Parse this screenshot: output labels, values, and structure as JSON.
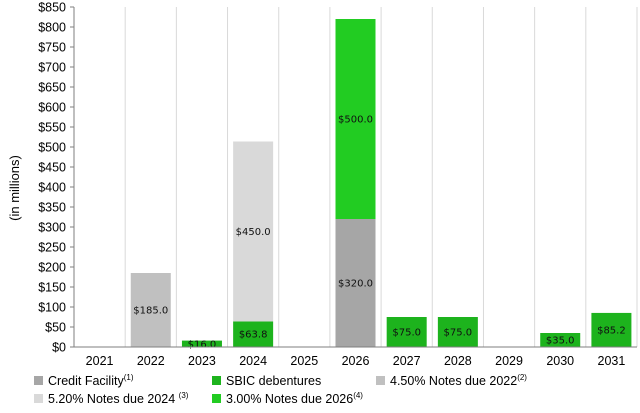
{
  "chart_data": {
    "type": "bar",
    "stacked": true,
    "categories": [
      "2021",
      "2022",
      "2023",
      "2024",
      "2025",
      "2026",
      "2027",
      "2028",
      "2029",
      "2030",
      "2031"
    ],
    "series": [
      {
        "name": "Credit Facility",
        "sup": "(1)",
        "color": "#a6a6a6",
        "values": [
          0,
          0,
          0,
          0,
          0,
          320,
          0,
          0,
          0,
          0,
          0
        ]
      },
      {
        "name": "SBIC debentures",
        "sup": "",
        "color": "#1db31d",
        "values": [
          0,
          0,
          16,
          63.8,
          0,
          0,
          75,
          75,
          0,
          35,
          85.2
        ]
      },
      {
        "name": "4.50% Notes due 2022",
        "sup": "(2)",
        "color": "#c0c0c0",
        "values": [
          0,
          185,
          0,
          0,
          0,
          0,
          0,
          0,
          0,
          0,
          0
        ]
      },
      {
        "name": "5.20% Notes due 2024 ",
        "sup": "(3)",
        "color": "#d9d9d9",
        "values": [
          0,
          0,
          0,
          450,
          0,
          0,
          0,
          0,
          0,
          0,
          0
        ]
      },
      {
        "name": "3.00% Notes due 2026",
        "sup": "(4)",
        "color": "#22cc22",
        "values": [
          0,
          0,
          0,
          0,
          0,
          500,
          0,
          0,
          0,
          0,
          0
        ]
      }
    ],
    "data_labels": [
      {
        "category": "2022",
        "series": "4.50% Notes due 2022",
        "text": "$185.0"
      },
      {
        "category": "2023",
        "series": "SBIC debentures",
        "text": "$16.0"
      },
      {
        "category": "2024",
        "series": "SBIC debentures",
        "text": "$63.8"
      },
      {
        "category": "2024",
        "series": "5.20% Notes due 2024 ",
        "text": "$450.0"
      },
      {
        "category": "2026",
        "series": "Credit Facility",
        "text": "$320.0"
      },
      {
        "category": "2026",
        "series": "3.00% Notes due 2026",
        "text": "$500.0"
      },
      {
        "category": "2027",
        "series": "SBIC debentures",
        "text": "$75.0"
      },
      {
        "category": "2028",
        "series": "SBIC debentures",
        "text": "$75.0"
      },
      {
        "category": "2030",
        "series": "SBIC debentures",
        "text": "$35.0"
      },
      {
        "category": "2031",
        "series": "SBIC debentures",
        "text": "$85.2"
      }
    ],
    "ylabel": "(in millions)",
    "ylim": [
      0,
      850
    ],
    "yticks": [
      0,
      50,
      100,
      150,
      200,
      250,
      300,
      350,
      400,
      450,
      500,
      550,
      600,
      650,
      700,
      750,
      800,
      850
    ],
    "ytick_prefix": "$",
    "grid": "vertical-category-dividers",
    "legend_position": "bottom"
  }
}
